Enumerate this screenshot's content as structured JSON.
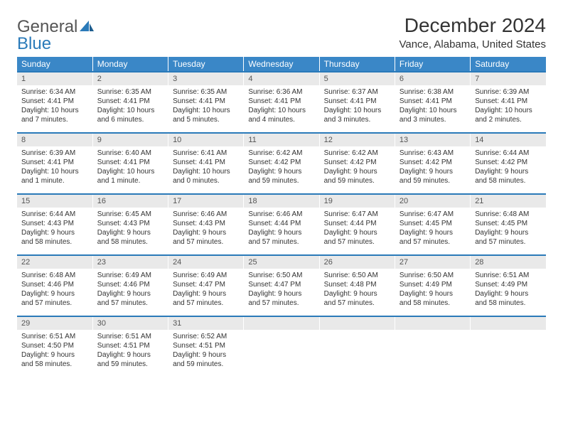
{
  "brand": {
    "word1": "General",
    "word2": "Blue"
  },
  "title": "December 2024",
  "location": "Vance, Alabama, United States",
  "colors": {
    "header_bg": "#3a87c7",
    "accent": "#2a7ab9",
    "daynum_bg": "#e9e9e9"
  },
  "weekdays": [
    "Sunday",
    "Monday",
    "Tuesday",
    "Wednesday",
    "Thursday",
    "Friday",
    "Saturday"
  ],
  "weeks": [
    [
      {
        "n": "1",
        "sr": "Sunrise: 6:34 AM",
        "ss": "Sunset: 4:41 PM",
        "d1": "Daylight: 10 hours",
        "d2": "and 7 minutes."
      },
      {
        "n": "2",
        "sr": "Sunrise: 6:35 AM",
        "ss": "Sunset: 4:41 PM",
        "d1": "Daylight: 10 hours",
        "d2": "and 6 minutes."
      },
      {
        "n": "3",
        "sr": "Sunrise: 6:35 AM",
        "ss": "Sunset: 4:41 PM",
        "d1": "Daylight: 10 hours",
        "d2": "and 5 minutes."
      },
      {
        "n": "4",
        "sr": "Sunrise: 6:36 AM",
        "ss": "Sunset: 4:41 PM",
        "d1": "Daylight: 10 hours",
        "d2": "and 4 minutes."
      },
      {
        "n": "5",
        "sr": "Sunrise: 6:37 AM",
        "ss": "Sunset: 4:41 PM",
        "d1": "Daylight: 10 hours",
        "d2": "and 3 minutes."
      },
      {
        "n": "6",
        "sr": "Sunrise: 6:38 AM",
        "ss": "Sunset: 4:41 PM",
        "d1": "Daylight: 10 hours",
        "d2": "and 3 minutes."
      },
      {
        "n": "7",
        "sr": "Sunrise: 6:39 AM",
        "ss": "Sunset: 4:41 PM",
        "d1": "Daylight: 10 hours",
        "d2": "and 2 minutes."
      }
    ],
    [
      {
        "n": "8",
        "sr": "Sunrise: 6:39 AM",
        "ss": "Sunset: 4:41 PM",
        "d1": "Daylight: 10 hours",
        "d2": "and 1 minute."
      },
      {
        "n": "9",
        "sr": "Sunrise: 6:40 AM",
        "ss": "Sunset: 4:41 PM",
        "d1": "Daylight: 10 hours",
        "d2": "and 1 minute."
      },
      {
        "n": "10",
        "sr": "Sunrise: 6:41 AM",
        "ss": "Sunset: 4:41 PM",
        "d1": "Daylight: 10 hours",
        "d2": "and 0 minutes."
      },
      {
        "n": "11",
        "sr": "Sunrise: 6:42 AM",
        "ss": "Sunset: 4:42 PM",
        "d1": "Daylight: 9 hours",
        "d2": "and 59 minutes."
      },
      {
        "n": "12",
        "sr": "Sunrise: 6:42 AM",
        "ss": "Sunset: 4:42 PM",
        "d1": "Daylight: 9 hours",
        "d2": "and 59 minutes."
      },
      {
        "n": "13",
        "sr": "Sunrise: 6:43 AM",
        "ss": "Sunset: 4:42 PM",
        "d1": "Daylight: 9 hours",
        "d2": "and 59 minutes."
      },
      {
        "n": "14",
        "sr": "Sunrise: 6:44 AM",
        "ss": "Sunset: 4:42 PM",
        "d1": "Daylight: 9 hours",
        "d2": "and 58 minutes."
      }
    ],
    [
      {
        "n": "15",
        "sr": "Sunrise: 6:44 AM",
        "ss": "Sunset: 4:43 PM",
        "d1": "Daylight: 9 hours",
        "d2": "and 58 minutes."
      },
      {
        "n": "16",
        "sr": "Sunrise: 6:45 AM",
        "ss": "Sunset: 4:43 PM",
        "d1": "Daylight: 9 hours",
        "d2": "and 58 minutes."
      },
      {
        "n": "17",
        "sr": "Sunrise: 6:46 AM",
        "ss": "Sunset: 4:43 PM",
        "d1": "Daylight: 9 hours",
        "d2": "and 57 minutes."
      },
      {
        "n": "18",
        "sr": "Sunrise: 6:46 AM",
        "ss": "Sunset: 4:44 PM",
        "d1": "Daylight: 9 hours",
        "d2": "and 57 minutes."
      },
      {
        "n": "19",
        "sr": "Sunrise: 6:47 AM",
        "ss": "Sunset: 4:44 PM",
        "d1": "Daylight: 9 hours",
        "d2": "and 57 minutes."
      },
      {
        "n": "20",
        "sr": "Sunrise: 6:47 AM",
        "ss": "Sunset: 4:45 PM",
        "d1": "Daylight: 9 hours",
        "d2": "and 57 minutes."
      },
      {
        "n": "21",
        "sr": "Sunrise: 6:48 AM",
        "ss": "Sunset: 4:45 PM",
        "d1": "Daylight: 9 hours",
        "d2": "and 57 minutes."
      }
    ],
    [
      {
        "n": "22",
        "sr": "Sunrise: 6:48 AM",
        "ss": "Sunset: 4:46 PM",
        "d1": "Daylight: 9 hours",
        "d2": "and 57 minutes."
      },
      {
        "n": "23",
        "sr": "Sunrise: 6:49 AM",
        "ss": "Sunset: 4:46 PM",
        "d1": "Daylight: 9 hours",
        "d2": "and 57 minutes."
      },
      {
        "n": "24",
        "sr": "Sunrise: 6:49 AM",
        "ss": "Sunset: 4:47 PM",
        "d1": "Daylight: 9 hours",
        "d2": "and 57 minutes."
      },
      {
        "n": "25",
        "sr": "Sunrise: 6:50 AM",
        "ss": "Sunset: 4:47 PM",
        "d1": "Daylight: 9 hours",
        "d2": "and 57 minutes."
      },
      {
        "n": "26",
        "sr": "Sunrise: 6:50 AM",
        "ss": "Sunset: 4:48 PM",
        "d1": "Daylight: 9 hours",
        "d2": "and 57 minutes."
      },
      {
        "n": "27",
        "sr": "Sunrise: 6:50 AM",
        "ss": "Sunset: 4:49 PM",
        "d1": "Daylight: 9 hours",
        "d2": "and 58 minutes."
      },
      {
        "n": "28",
        "sr": "Sunrise: 6:51 AM",
        "ss": "Sunset: 4:49 PM",
        "d1": "Daylight: 9 hours",
        "d2": "and 58 minutes."
      }
    ],
    [
      {
        "n": "29",
        "sr": "Sunrise: 6:51 AM",
        "ss": "Sunset: 4:50 PM",
        "d1": "Daylight: 9 hours",
        "d2": "and 58 minutes."
      },
      {
        "n": "30",
        "sr": "Sunrise: 6:51 AM",
        "ss": "Sunset: 4:51 PM",
        "d1": "Daylight: 9 hours",
        "d2": "and 59 minutes."
      },
      {
        "n": "31",
        "sr": "Sunrise: 6:52 AM",
        "ss": "Sunset: 4:51 PM",
        "d1": "Daylight: 9 hours",
        "d2": "and 59 minutes."
      },
      {
        "empty": true
      },
      {
        "empty": true
      },
      {
        "empty": true
      },
      {
        "empty": true
      }
    ]
  ]
}
